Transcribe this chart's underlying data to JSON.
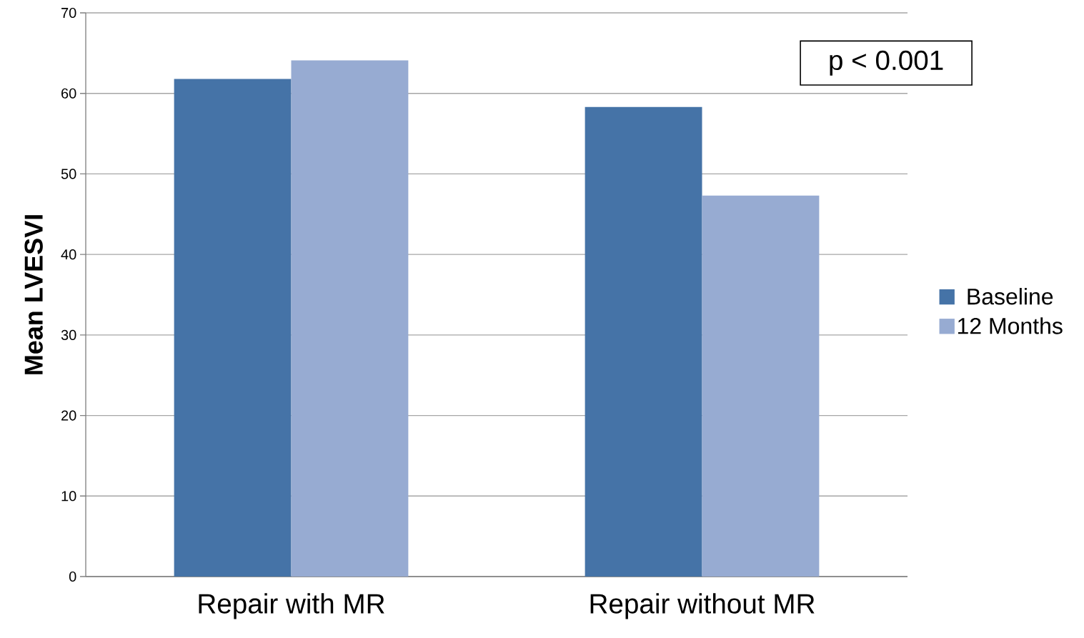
{
  "chart_data": {
    "type": "bar",
    "ylabel": "Mean LVESVI",
    "categories": [
      "Repair with MR",
      "Repair without MR"
    ],
    "series": [
      {
        "name": "Baseline",
        "color": "#4573a7",
        "values": [
          61.8,
          58.3
        ]
      },
      {
        "name": "12 Months",
        "color": "#97abd2",
        "values": [
          64.1,
          47.3
        ]
      }
    ],
    "ylim": [
      0,
      70
    ],
    "yticks": [
      0,
      10,
      20,
      30,
      40,
      50,
      60,
      70
    ],
    "grid": "y",
    "legend": "right",
    "annotations": [
      "p < 0.001"
    ]
  }
}
